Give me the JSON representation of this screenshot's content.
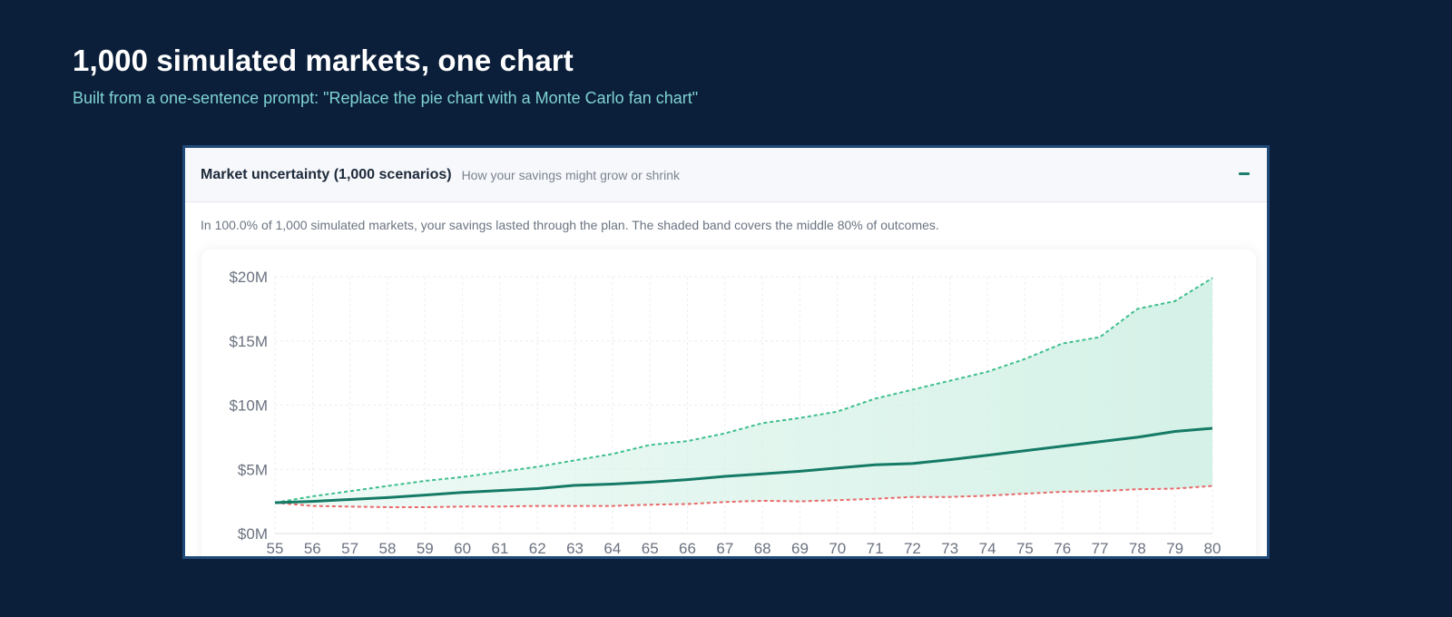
{
  "hero": {
    "title": "1,000 simulated markets, one chart",
    "subtitle": "Built from a one-sentence prompt: \"Replace the pie chart with a Monte Carlo fan chart\""
  },
  "panel": {
    "title": "Market uncertainty (1,000 scenarios)",
    "hint": "How your savings might grow or shrink",
    "collapse_icon": "minus-icon",
    "summary": "In 100.0% of 1,000 simulated markets, your savings lasted through the plan. The shaded band covers the middle 80% of outcomes."
  },
  "colors": {
    "median": "#157a66",
    "upper": "#3dbf8c",
    "lower": "#e86a6a",
    "band": "#d3f1e6"
  },
  "chart_data": {
    "type": "area",
    "x": [
      55,
      56,
      57,
      58,
      59,
      60,
      61,
      62,
      63,
      64,
      65,
      66,
      67,
      68,
      69,
      70,
      71,
      72,
      73,
      74,
      75,
      76,
      77,
      78,
      79,
      80
    ],
    "x_tick_labels": [
      "55",
      "56",
      "57",
      "58",
      "59",
      "60",
      "61",
      "62",
      "63",
      "64",
      "65",
      "66",
      "67",
      "68",
      "69",
      "70",
      "71",
      "72",
      "73",
      "74",
      "75",
      "76",
      "77",
      "78",
      "79",
      "80"
    ],
    "y_tick_values": [
      0,
      5,
      10,
      15,
      20
    ],
    "y_tick_labels": [
      "$0M",
      "$5M",
      "$10M",
      "$15M",
      "$20M"
    ],
    "ylim": [
      0,
      20
    ],
    "xlim": [
      55,
      80
    ],
    "grid": true,
    "series": [
      {
        "role": "upper",
        "style": "dashed",
        "values": [
          2.4,
          2.9,
          3.3,
          3.7,
          4.1,
          4.4,
          4.8,
          5.2,
          5.7,
          6.2,
          6.9,
          7.2,
          7.8,
          8.6,
          9.0,
          9.5,
          10.5,
          11.2,
          11.9,
          12.6,
          13.6,
          14.8,
          15.3,
          17.5,
          18.1,
          19.9
        ]
      },
      {
        "role": "median",
        "style": "solid",
        "values": [
          2.4,
          2.5,
          2.65,
          2.8,
          3.0,
          3.2,
          3.35,
          3.5,
          3.75,
          3.85,
          4.0,
          4.2,
          4.45,
          4.65,
          4.85,
          5.1,
          5.35,
          5.45,
          5.75,
          6.1,
          6.45,
          6.8,
          7.15,
          7.5,
          7.95,
          8.2
        ]
      },
      {
        "role": "lower",
        "style": "dashed",
        "values": [
          2.4,
          2.15,
          2.1,
          2.05,
          2.05,
          2.1,
          2.1,
          2.15,
          2.15,
          2.15,
          2.25,
          2.3,
          2.45,
          2.55,
          2.5,
          2.6,
          2.7,
          2.85,
          2.85,
          2.95,
          3.1,
          3.25,
          3.3,
          3.45,
          3.5,
          3.7
        ]
      }
    ]
  }
}
